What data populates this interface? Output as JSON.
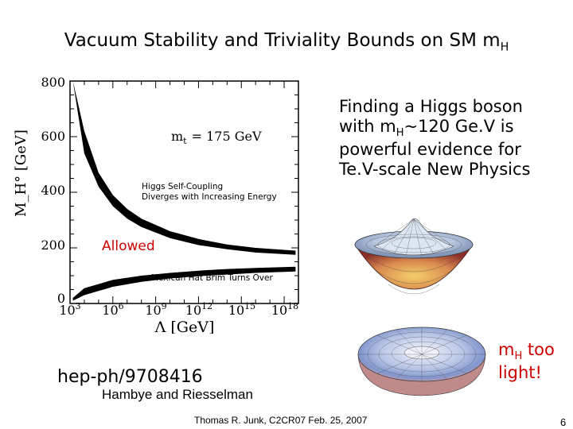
{
  "title": {
    "main": "Vacuum Stability and Triviality Bounds on SM  m",
    "sub": "H"
  },
  "callout": {
    "line1": "Finding a Higgs boson",
    "line2_pre": "with m",
    "line2_sub": "H",
    "line2_post": "~120 Ge.V is",
    "line3": "powerful evidence for",
    "line4": "Te.V-scale New Physics"
  },
  "mh_light": {
    "pre": "m",
    "sub": "H",
    "post": " too",
    "line2": "light!"
  },
  "reference": {
    "code": "hep-ph/9708416",
    "authors": "Hambye and Riesselman"
  },
  "footer": "Thomas R. Junk, C2CR07 Feb. 25, 2007",
  "page_number": "6",
  "colors": {
    "accent_red": "#cc0000",
    "band": "#000000"
  },
  "chart_data": {
    "type": "area",
    "xscale": "log",
    "xlabel": "Λ [GeV]",
    "ylabel": "M_H° [GeV]",
    "ylim": [
      0,
      800
    ],
    "xlim_exponent": [
      3,
      19
    ],
    "y_ticks": [
      "0",
      "200",
      "400",
      "600",
      "800"
    ],
    "x_tick_bases": [
      "10",
      "10",
      "10",
      "10",
      "10",
      "10"
    ],
    "x_tick_exponents": [
      "3",
      "6",
      "9",
      "12",
      "15",
      "18"
    ],
    "x_tick_values_log10": [
      3,
      6,
      9,
      12,
      15,
      18
    ],
    "annotation_mt": "m",
    "annotation_mt_sub": "t",
    "annotation_mt_value": "= 175 GeV",
    "annotation_upper_1": "Higgs Self-Coupling",
    "annotation_upper_2": "Diverges with Increasing Energy",
    "annotation_allowed": "Allowed",
    "annotation_lower": "Mexican Hat Brim Turns Over",
    "series": [
      {
        "band": "triviality-upper",
        "log10_lambda": [
          3.2,
          4,
          5,
          6,
          7,
          8,
          10,
          12,
          14,
          16,
          18.8
        ],
        "upper": [
          800,
          620,
          470,
          390,
          340,
          305,
          260,
          232,
          212,
          200,
          190
        ],
        "lower": [
          800,
          540,
          420,
          350,
          305,
          275,
          235,
          210,
          195,
          183,
          175
        ]
      },
      {
        "band": "stability-lower",
        "log10_lambda": [
          3.2,
          4,
          6,
          8,
          10,
          12,
          14,
          16,
          18.8
        ],
        "upper": [
          20,
          55,
          85,
          100,
          110,
          118,
          124,
          128,
          132
        ],
        "lower": [
          10,
          30,
          60,
          78,
          90,
          98,
          104,
          110,
          115
        ]
      }
    ]
  }
}
